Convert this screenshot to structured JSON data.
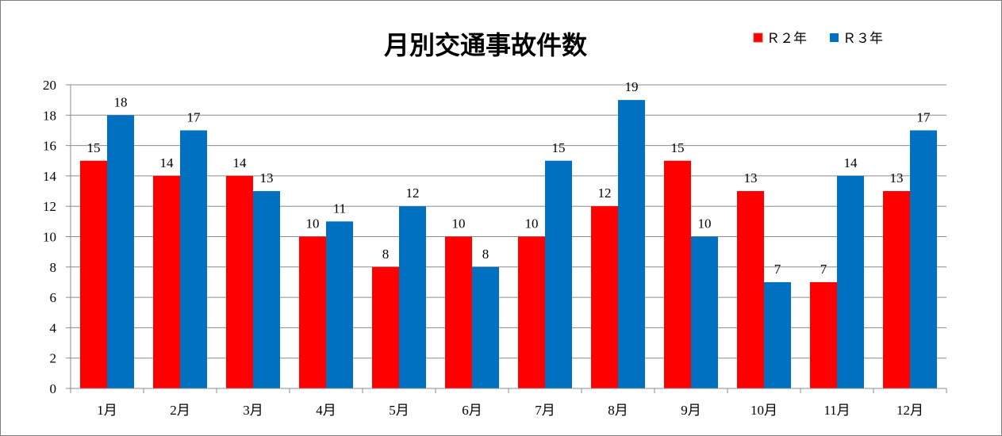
{
  "colors": {
    "r2": "#ff0000",
    "r3": "#0070c0",
    "grid": "#8c8c8c",
    "axis": "#8c8c8c"
  },
  "chart_data": {
    "type": "bar",
    "title": "月別交通事故件数",
    "xlabel": "",
    "ylabel": "",
    "ylim": [
      0,
      20
    ],
    "yticks": [
      0,
      2,
      4,
      6,
      8,
      10,
      12,
      14,
      16,
      18,
      20
    ],
    "grid": true,
    "legend_position": "top-right",
    "categories": [
      "1月",
      "2月",
      "3月",
      "4月",
      "5月",
      "6月",
      "7月",
      "8月",
      "9月",
      "10月",
      "11月",
      "12月"
    ],
    "series": [
      {
        "name": "Ｒ２年",
        "values": [
          15,
          14,
          14,
          10,
          8,
          10,
          10,
          12,
          15,
          13,
          7,
          13
        ]
      },
      {
        "name": "Ｒ３年",
        "values": [
          18,
          17,
          13,
          11,
          12,
          8,
          15,
          19,
          10,
          7,
          14,
          17
        ]
      }
    ]
  }
}
